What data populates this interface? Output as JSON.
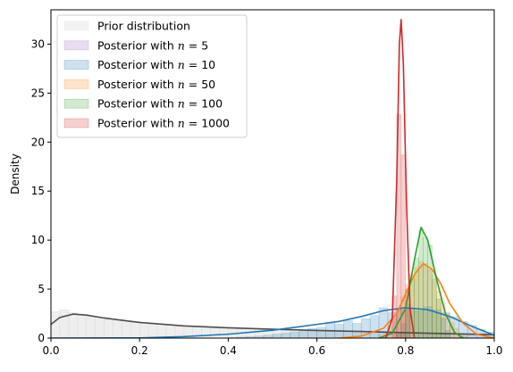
{
  "chart_data": {
    "type": "area",
    "title": "",
    "xlabel": "",
    "ylabel": "Density",
    "xlim": [
      0.0,
      1.0
    ],
    "ylim": [
      0,
      33.5
    ],
    "grid": false,
    "legend_position": "top-left",
    "x_ticks": [
      "0.0",
      "0.2",
      "0.4",
      "0.6",
      "0.8",
      "1.0"
    ],
    "x_tick_values": [
      0.0,
      0.2,
      0.4,
      0.6,
      0.8,
      1.0
    ],
    "y_ticks": [
      "0",
      "5",
      "10",
      "15",
      "20",
      "25",
      "30"
    ],
    "y_tick_values": [
      0,
      5,
      10,
      15,
      20,
      25,
      30
    ],
    "series": [
      {
        "name": "Prior distribution",
        "color": "#4d4d4d",
        "fill": "#d9d9d9",
        "kde": [
          [
            0.0,
            1.4
          ],
          [
            0.02,
            2.1
          ],
          [
            0.05,
            2.45
          ],
          [
            0.08,
            2.35
          ],
          [
            0.12,
            2.05
          ],
          [
            0.2,
            1.6
          ],
          [
            0.3,
            1.25
          ],
          [
            0.4,
            1.05
          ],
          [
            0.5,
            0.9
          ],
          [
            0.6,
            0.78
          ],
          [
            0.7,
            0.68
          ],
          [
            0.8,
            0.55
          ],
          [
            0.9,
            0.45
          ],
          [
            1.0,
            0.35
          ]
        ],
        "hist_bin_width": 0.02,
        "hist": [
          2.7,
          2.9,
          2.6,
          2.4,
          2.2,
          2.1,
          1.9,
          1.8,
          1.7,
          1.6,
          1.5,
          1.45,
          1.4,
          1.3,
          1.25,
          1.2,
          1.15,
          1.1,
          1.05,
          1.0,
          1.0,
          0.95,
          0.95,
          0.9,
          0.9,
          0.85,
          0.85,
          0.8,
          0.8,
          0.75,
          0.75,
          0.7,
          0.7,
          0.7,
          0.65,
          0.65,
          0.6,
          0.6,
          0.55,
          0.55,
          0.5,
          0.5,
          0.5,
          0.45,
          0.45,
          0.4,
          0.4,
          0.4,
          0.35,
          0.35
        ]
      },
      {
        "name": "Posterior with $n = 5$",
        "color": "#9467bd",
        "fill": "#9467bd",
        "kde": [],
        "hist_bin_width": 0.02,
        "hist": []
      },
      {
        "name": "Posterior with $n = 10$",
        "color": "#1f77b4",
        "fill": "#1f77b4",
        "kde": [
          [
            0.0,
            0.0
          ],
          [
            0.2,
            0.02
          ],
          [
            0.3,
            0.15
          ],
          [
            0.4,
            0.4
          ],
          [
            0.5,
            0.8
          ],
          [
            0.55,
            1.1
          ],
          [
            0.6,
            1.4
          ],
          [
            0.65,
            1.7
          ],
          [
            0.7,
            2.2
          ],
          [
            0.75,
            2.8
          ],
          [
            0.8,
            3.1
          ],
          [
            0.85,
            2.9
          ],
          [
            0.9,
            2.2
          ],
          [
            0.95,
            1.2
          ],
          [
            1.0,
            0.3
          ]
        ],
        "hist_bin_width": 0.02,
        "hist": [
          0.05,
          0.1,
          0.15,
          0.2,
          0.3,
          0.4,
          0.5,
          0.6,
          0.8,
          1.0,
          1.1,
          1.6,
          1.4,
          1.8,
          1.5,
          2.0,
          2.3,
          3.1,
          2.6,
          2.9,
          3.0,
          2.8,
          3.2,
          2.9,
          2.6,
          2.2,
          1.7,
          1.3,
          0.9,
          0.6
        ],
        "hist_start": 0.4
      },
      {
        "name": "Posterior with $n = 50$",
        "color": "#ff7f0e",
        "fill": "#ff7f0e",
        "kde": [
          [
            0.65,
            0.0
          ],
          [
            0.7,
            0.2
          ],
          [
            0.75,
            1.0
          ],
          [
            0.78,
            2.5
          ],
          [
            0.8,
            4.5
          ],
          [
            0.82,
            6.5
          ],
          [
            0.84,
            7.6
          ],
          [
            0.86,
            7.0
          ],
          [
            0.88,
            5.5
          ],
          [
            0.9,
            3.5
          ],
          [
            0.93,
            1.5
          ],
          [
            0.96,
            0.4
          ],
          [
            1.0,
            0.0
          ]
        ],
        "hist_bin_width": 0.01,
        "hist": [
          0.3,
          0.6,
          1.2,
          2.0,
          3.0,
          4.2,
          5.5,
          6.5,
          7.2,
          7.8,
          7.6,
          7.0,
          6.0,
          4.8,
          3.6,
          2.5,
          1.6,
          1.0,
          0.5,
          0.2
        ],
        "hist_start": 0.74
      },
      {
        "name": "Posterior with $n = 100$",
        "color": "#2ca02c",
        "fill": "#2ca02c",
        "kde": [
          [
            0.74,
            0.0
          ],
          [
            0.77,
            0.5
          ],
          [
            0.8,
            3.0
          ],
          [
            0.82,
            8.0
          ],
          [
            0.835,
            11.3
          ],
          [
            0.85,
            10.0
          ],
          [
            0.87,
            6.0
          ],
          [
            0.89,
            2.5
          ],
          [
            0.91,
            0.6
          ],
          [
            0.93,
            0.0
          ]
        ],
        "hist_bin_width": 0.01,
        "hist": [
          0.5,
          1.5,
          3.5,
          6.0,
          8.2,
          11.0,
          10.3,
          9.5,
          6.5,
          4.0,
          2.0,
          0.8
        ],
        "hist_start": 0.78
      },
      {
        "name": "Posterior with $n = 1000$",
        "color": "#d62728",
        "fill": "#d62728",
        "kde": [
          [
            0.755,
            0.0
          ],
          [
            0.77,
            2.0
          ],
          [
            0.78,
            16.0
          ],
          [
            0.786,
            30.0
          ],
          [
            0.79,
            32.5
          ],
          [
            0.795,
            28.0
          ],
          [
            0.802,
            14.0
          ],
          [
            0.81,
            3.0
          ],
          [
            0.82,
            0.0
          ]
        ],
        "hist_bin_width": 0.01,
        "hist": [
          4.3,
          22.8,
          18.7,
          5.0
        ],
        "hist_start": 0.77
      }
    ]
  },
  "legend_labels": [
    {
      "prefix": "Prior distribution",
      "n": ""
    },
    {
      "prefix": "Posterior with ",
      "n": "5"
    },
    {
      "prefix": "Posterior with ",
      "n": "10"
    },
    {
      "prefix": "Posterior with ",
      "n": "50"
    },
    {
      "prefix": "Posterior with ",
      "n": "100"
    },
    {
      "prefix": "Posterior with ",
      "n": "1000"
    }
  ],
  "legend_n_symbol": "n",
  "legend_eq": " = "
}
